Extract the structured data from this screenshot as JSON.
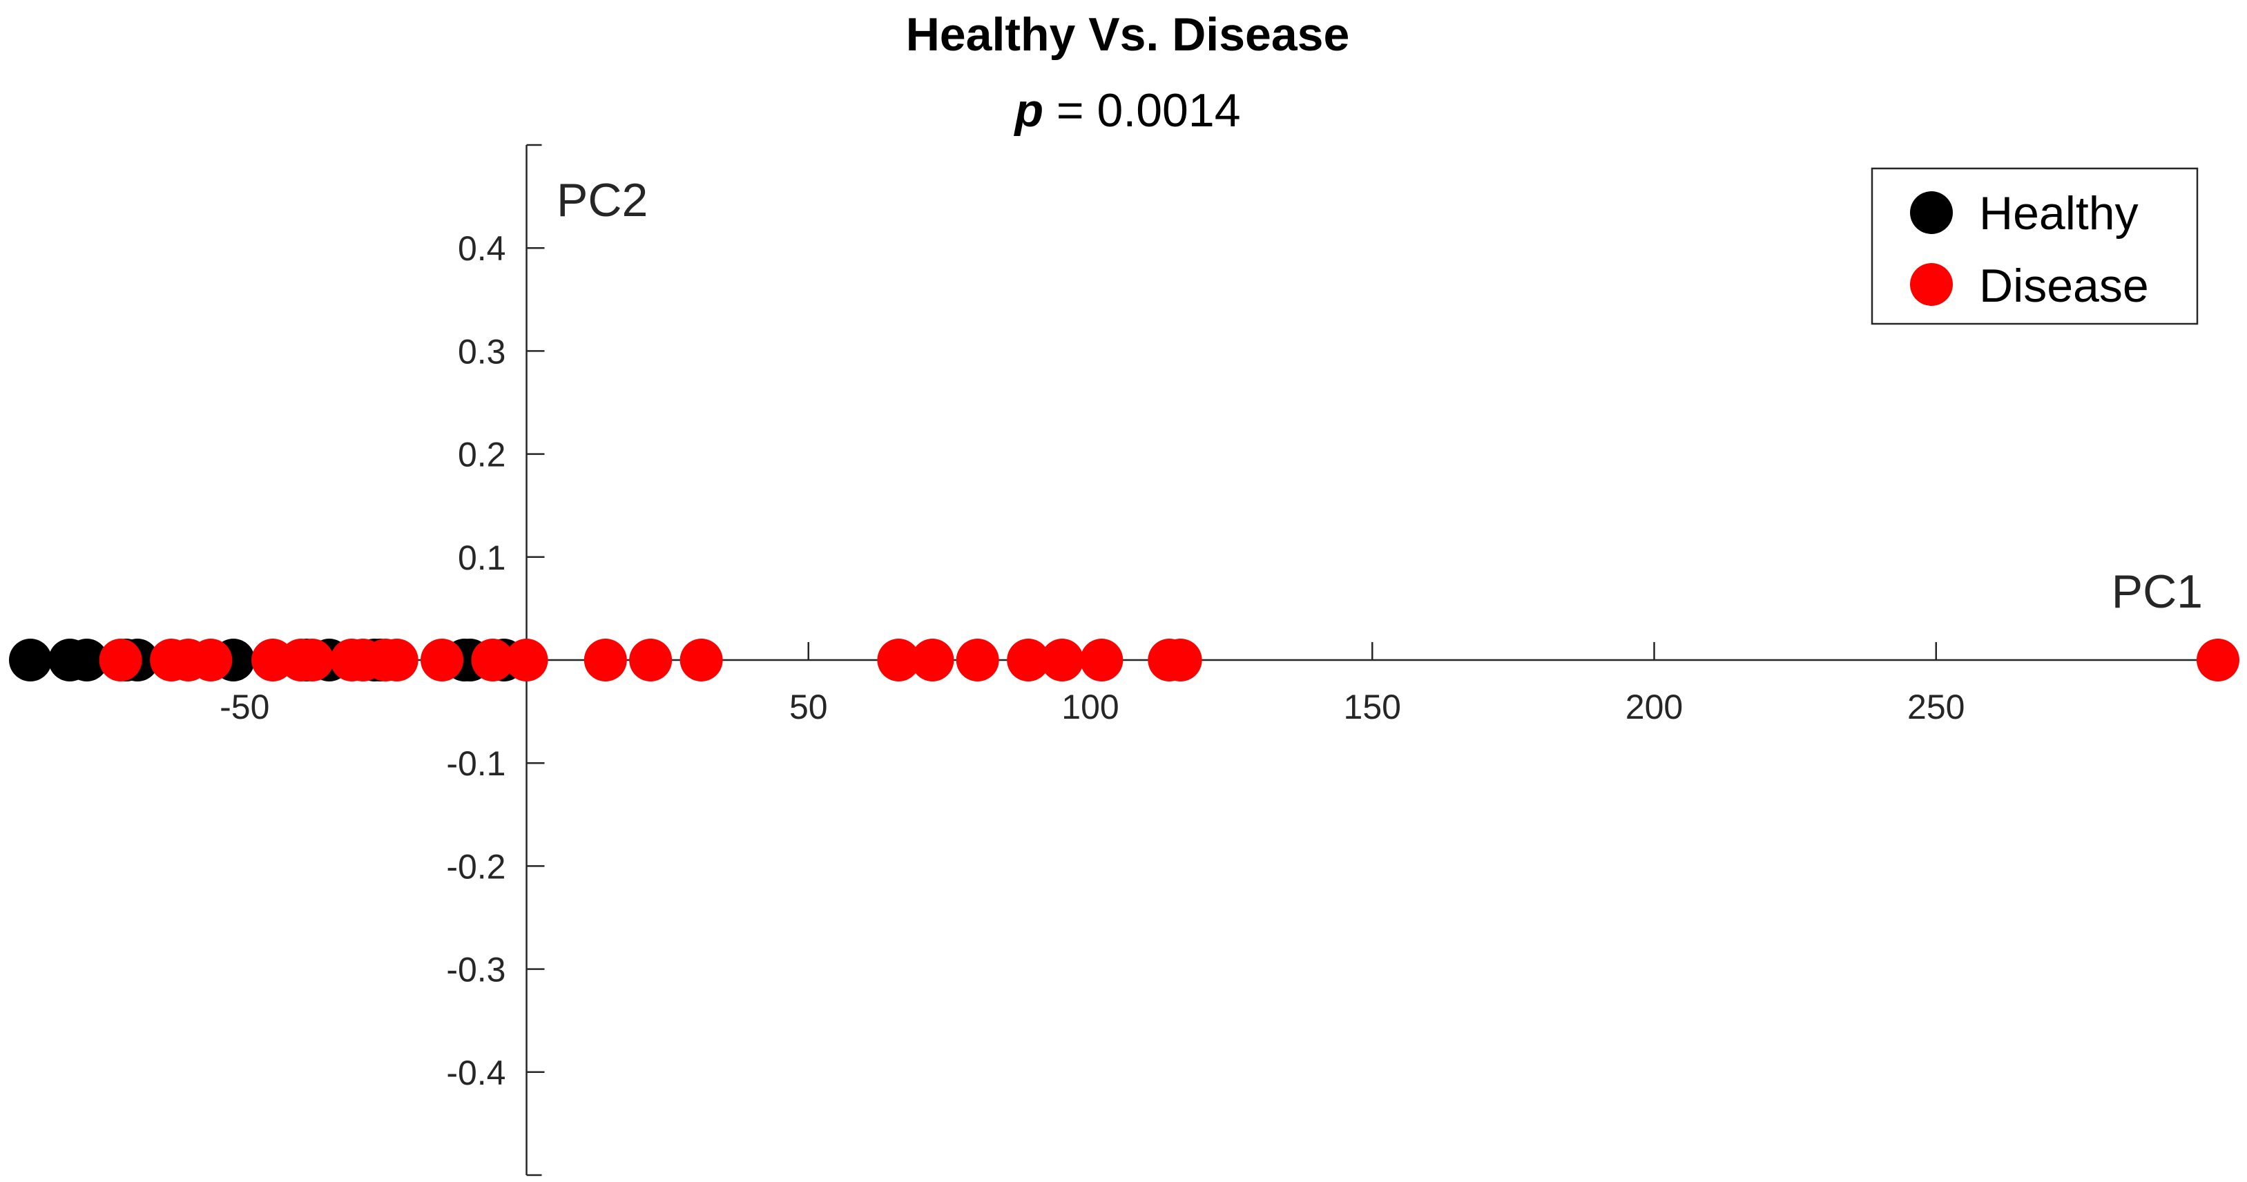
{
  "chart_data": {
    "type": "scatter",
    "title": "Healthy Vs. Disease",
    "subtitle": {
      "p_symbol": "p",
      "rest": " = 0.0014"
    },
    "xlabel": "PC1",
    "ylabel": "PC2",
    "xlim": [
      -88,
      300
    ],
    "ylim": [
      -0.5,
      0.5
    ],
    "x_ticks": [
      -50,
      50,
      100,
      150,
      200,
      250
    ],
    "x_tick_labels": [
      "-50",
      "50",
      "100",
      "150",
      "200",
      "250"
    ],
    "y_ticks": [
      0.4,
      0.3,
      0.2,
      0.1,
      -0.1,
      -0.2,
      -0.3,
      -0.4
    ],
    "y_tick_labels": [
      "0.4",
      "0.3",
      "0.2",
      "0.1",
      "-0.1",
      "-0.2",
      "-0.3",
      "-0.4"
    ],
    "legend_position": "top-right",
    "grid": false,
    "series": [
      {
        "name": "Healthy",
        "color": "#000000",
        "x": [
          -88,
          -81,
          -78,
          -71,
          -69,
          -52,
          -39,
          -35,
          -27,
          -26,
          -11,
          -10,
          -4
        ],
        "y": [
          0,
          0,
          0,
          0,
          0,
          0,
          0,
          0,
          0,
          0,
          0,
          0,
          0
        ]
      },
      {
        "name": "Disease",
        "color": "#ff0000",
        "x": [
          -72,
          -63,
          -60,
          -56,
          -45,
          -40,
          -38,
          -31,
          -29,
          -25,
          -23,
          -15,
          -6,
          0,
          14,
          22,
          31,
          66,
          72,
          80,
          89,
          95,
          102,
          114,
          116,
          300
        ],
        "y": [
          0,
          0,
          0,
          0,
          0,
          0,
          0,
          0,
          0,
          0,
          0,
          0,
          0,
          0,
          0,
          0,
          0,
          0,
          0,
          0,
          0,
          0,
          0,
          0,
          0,
          0
        ]
      }
    ]
  }
}
